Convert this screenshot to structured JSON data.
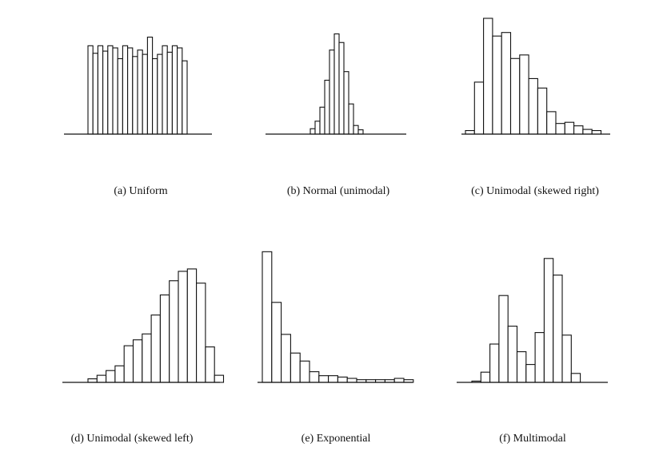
{
  "chart_data": [
    {
      "type": "bar",
      "title": "",
      "caption": "(a) Uniform",
      "values": [
        0.82,
        0.75,
        0.82,
        0.77,
        0.82,
        0.8,
        0.7,
        0.82,
        0.8,
        0.72,
        0.78,
        0.74,
        0.9,
        0.7,
        0.74,
        0.82,
        0.76,
        0.82,
        0.8,
        0.68
      ]
    },
    {
      "type": "bar",
      "title": "",
      "caption": "(b) Normal (unimodal)",
      "values": [
        0.05,
        0.12,
        0.25,
        0.5,
        0.78,
        0.93,
        0.85,
        0.58,
        0.28,
        0.08,
        0.04
      ]
    },
    {
      "type": "bar",
      "title": "",
      "caption": "(c) Unimodal (skewed right)",
      "values": [
        0.03,
        0.44,
        0.98,
        0.83,
        0.86,
        0.64,
        0.67,
        0.47,
        0.39,
        0.19,
        0.09,
        0.1,
        0.07,
        0.04,
        0.03
      ]
    },
    {
      "type": "bar",
      "title": "",
      "caption": "(d) Unimodal (skewed left)",
      "values": [
        0.03,
        0.06,
        0.1,
        0.14,
        0.31,
        0.36,
        0.41,
        0.57,
        0.74,
        0.86,
        0.94,
        0.96,
        0.84,
        0.3,
        0.06
      ]
    },
    {
      "type": "bar",
      "title": "",
      "caption": "(e) Exponential",
      "values": [
        0.98,
        0.6,
        0.36,
        0.22,
        0.16,
        0.08,
        0.05,
        0.05,
        0.04,
        0.03,
        0.02,
        0.02,
        0.02,
        0.02,
        0.03,
        0.02
      ]
    },
    {
      "type": "bar",
      "title": "",
      "caption": "(f) Multimodal",
      "values": [
        0.01,
        0.08,
        0.3,
        0.68,
        0.44,
        0.24,
        0.14,
        0.39,
        0.97,
        0.84,
        0.37,
        0.07
      ]
    }
  ]
}
